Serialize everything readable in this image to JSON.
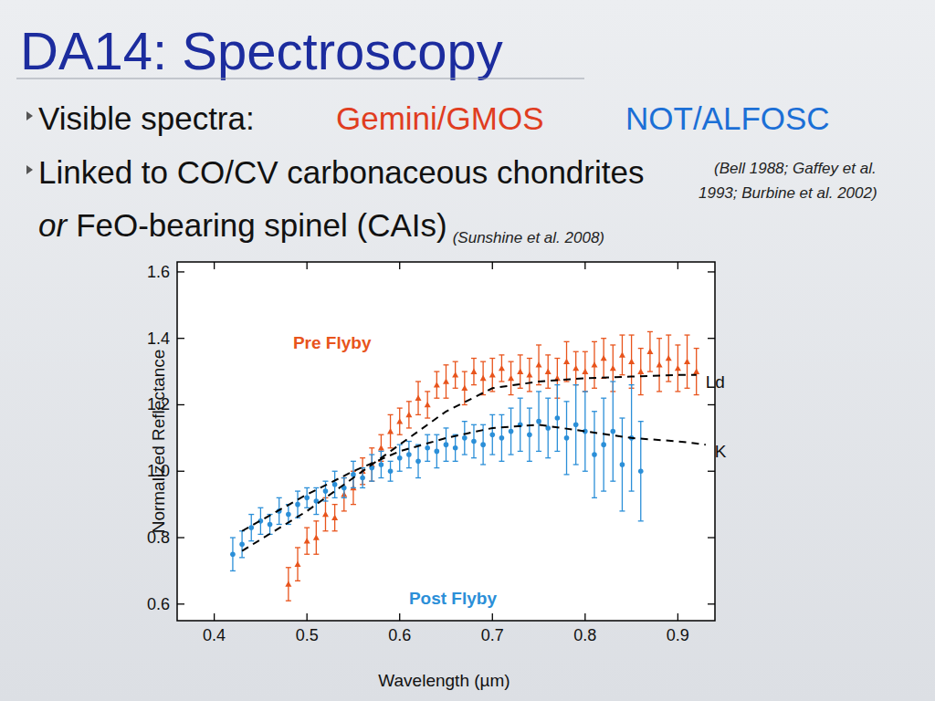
{
  "slide": {
    "title": "DA14: Spectroscopy",
    "bullets": [
      [
        "Visible spectra:",
        "Gemini/GMOS",
        "NOT/ALFOSC"
      ],
      [
        "Linked to CO/CV carbonaceous chondrites",
        "(Bell 1988; Gaffey et al.",
        "1993; Burbine et al. 2002)"
      ],
      [
        "or",
        "FeO-bearing spinel (CAIs)",
        "(Sunshine et al. 2008)"
      ]
    ]
  },
  "chart_data": {
    "type": "scatter",
    "x_label": "Wavelength (µm)",
    "y_label": "Normalized Reflectance",
    "xlim": [
      0.36,
      0.94
    ],
    "ylim": [
      0.55,
      1.63
    ],
    "xticks": [
      0.4,
      0.5,
      0.6,
      0.7,
      0.8,
      0.9
    ],
    "yticks": [
      0.6,
      0.8,
      {
        "value": 1,
        "label": "1.0"
      },
      1.2,
      1.4,
      1.6
    ],
    "grid": false,
    "series": [
      {
        "name": "Pre Flyby",
        "type": "scatter",
        "marker": "triangle",
        "color": "#e8541c",
        "x": [
          0.48,
          0.49,
          0.5,
          0.51,
          0.52,
          0.53,
          0.54,
          0.55,
          0.56,
          0.57,
          0.58,
          0.59,
          0.6,
          0.61,
          0.62,
          0.63,
          0.64,
          0.65,
          0.66,
          0.67,
          0.68,
          0.69,
          0.7,
          0.71,
          0.72,
          0.73,
          0.74,
          0.75,
          0.76,
          0.77,
          0.78,
          0.79,
          0.8,
          0.81,
          0.82,
          0.83,
          0.84,
          0.85,
          0.86,
          0.87,
          0.88,
          0.89,
          0.9,
          0.91,
          0.92
        ],
        "values": [
          0.66,
          0.72,
          0.79,
          0.8,
          0.87,
          0.86,
          0.93,
          0.95,
          1.0,
          1.02,
          1.07,
          1.12,
          1.15,
          1.17,
          1.22,
          1.2,
          1.26,
          1.27,
          1.29,
          1.25,
          1.3,
          1.28,
          1.29,
          1.31,
          1.28,
          1.3,
          1.29,
          1.32,
          1.3,
          1.28,
          1.33,
          1.31,
          1.3,
          1.32,
          1.34,
          1.31,
          1.35,
          1.33,
          1.3,
          1.36,
          1.32,
          1.34,
          1.31,
          1.33,
          1.3
        ],
        "errors": [
          0.05,
          0.05,
          0.04,
          0.05,
          0.05,
          0.04,
          0.05,
          0.05,
          0.04,
          0.05,
          0.04,
          0.05,
          0.04,
          0.04,
          0.05,
          0.04,
          0.04,
          0.05,
          0.04,
          0.05,
          0.04,
          0.05,
          0.05,
          0.04,
          0.05,
          0.05,
          0.05,
          0.06,
          0.05,
          0.06,
          0.06,
          0.05,
          0.06,
          0.07,
          0.06,
          0.07,
          0.06,
          0.08,
          0.07,
          0.06,
          0.08,
          0.07,
          0.07,
          0.08,
          0.07
        ]
      },
      {
        "name": "Post Flyby",
        "type": "scatter",
        "marker": "circle",
        "color": "#2b8fd8",
        "x": [
          0.42,
          0.43,
          0.44,
          0.45,
          0.46,
          0.47,
          0.48,
          0.49,
          0.5,
          0.51,
          0.52,
          0.53,
          0.54,
          0.55,
          0.56,
          0.57,
          0.58,
          0.59,
          0.6,
          0.61,
          0.62,
          0.63,
          0.64,
          0.65,
          0.66,
          0.67,
          0.68,
          0.69,
          0.7,
          0.71,
          0.72,
          0.73,
          0.74,
          0.75,
          0.76,
          0.77,
          0.78,
          0.79,
          0.8,
          0.81,
          0.82,
          0.83,
          0.84,
          0.85,
          0.86
        ],
        "values": [
          0.75,
          0.78,
          0.83,
          0.85,
          0.84,
          0.88,
          0.87,
          0.9,
          0.92,
          0.91,
          0.94,
          0.96,
          0.95,
          0.99,
          0.98,
          1.01,
          1.02,
          1.0,
          1.04,
          1.05,
          1.03,
          1.07,
          1.06,
          1.08,
          1.07,
          1.1,
          1.09,
          1.08,
          1.11,
          1.1,
          1.12,
          1.14,
          1.11,
          1.15,
          1.13,
          1.16,
          1.1,
          1.14,
          1.12,
          1.05,
          1.08,
          1.12,
          1.02,
          1.1,
          1.0
        ],
        "errors": [
          0.05,
          0.04,
          0.04,
          0.04,
          0.03,
          0.04,
          0.03,
          0.04,
          0.03,
          0.04,
          0.03,
          0.04,
          0.03,
          0.04,
          0.03,
          0.04,
          0.04,
          0.03,
          0.04,
          0.04,
          0.05,
          0.04,
          0.05,
          0.05,
          0.04,
          0.05,
          0.05,
          0.06,
          0.06,
          0.07,
          0.07,
          0.08,
          0.08,
          0.09,
          0.09,
          0.1,
          0.11,
          0.12,
          0.12,
          0.13,
          0.14,
          0.15,
          0.14,
          0.16,
          0.15
        ]
      },
      {
        "name": "Ld",
        "type": "line",
        "line_style": "dashed",
        "color": "#000000",
        "x": [
          0.43,
          0.5,
          0.55,
          0.6,
          0.65,
          0.7,
          0.75,
          0.8,
          0.85,
          0.9,
          0.92
        ],
        "values": [
          0.76,
          0.88,
          0.98,
          1.08,
          1.18,
          1.25,
          1.27,
          1.28,
          1.285,
          1.29,
          1.29
        ]
      },
      {
        "name": "K",
        "type": "line",
        "line_style": "dashed",
        "color": "#000000",
        "x": [
          0.43,
          0.5,
          0.55,
          0.6,
          0.65,
          0.7,
          0.75,
          0.8,
          0.85,
          0.9,
          0.93
        ],
        "values": [
          0.82,
          0.93,
          1.0,
          1.06,
          1.1,
          1.13,
          1.14,
          1.12,
          1.1,
          1.09,
          1.08
        ]
      }
    ]
  }
}
